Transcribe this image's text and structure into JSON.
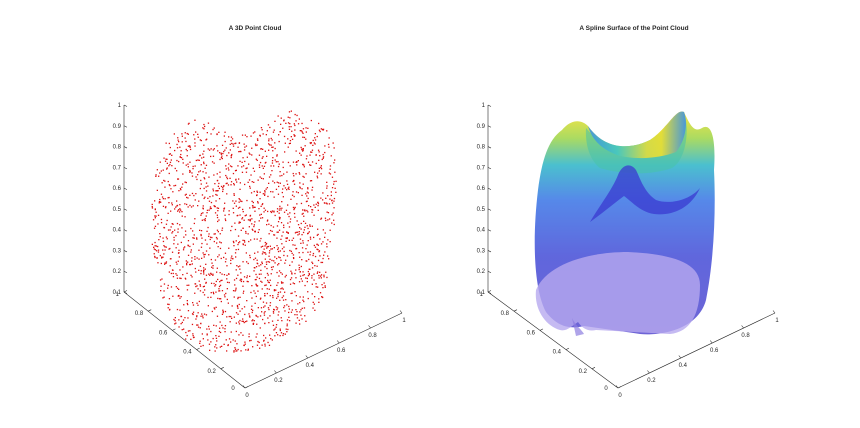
{
  "figure": {
    "background": "#ffffff"
  },
  "chart_data": [
    {
      "type": "scatter3d",
      "title": "A 3D Point Cloud",
      "marker_color": "#dd1111",
      "marker": "dot",
      "xlim": [
        0,
        1
      ],
      "ylim": [
        0,
        1
      ],
      "zlim": [
        0.1,
        1
      ],
      "x_ticks": [
        "0",
        "0.2",
        "0.4",
        "0.6",
        "0.8",
        "1"
      ],
      "y_ticks": [
        "0",
        "0.2",
        "0.4",
        "0.6",
        "0.8",
        "1"
      ],
      "z_ticks": [
        "0.1",
        "0.2",
        "0.3",
        "0.4",
        "0.5",
        "0.6",
        "0.7",
        "0.8",
        "0.9",
        "1"
      ],
      "grid": false
    },
    {
      "type": "surface",
      "title": "A Spline Surface of the Point Cloud",
      "colormap": [
        "#4430c8",
        "#3f6ae0",
        "#2fa8d8",
        "#3cc6a0",
        "#b7d644",
        "#f5e02a"
      ],
      "face_alpha": 0.55,
      "xlim": [
        0,
        1
      ],
      "ylim": [
        0,
        1
      ],
      "zlim": [
        0.1,
        1
      ],
      "x_ticks": [
        "0",
        "0.2",
        "0.4",
        "0.6",
        "0.8",
        "1"
      ],
      "y_ticks": [
        "0",
        "0.2",
        "0.4",
        "0.6",
        "0.8",
        "1"
      ],
      "z_ticks": [
        "0.1",
        "0.2",
        "0.3",
        "0.4",
        "0.5",
        "0.6",
        "0.7",
        "0.8",
        "0.9",
        "1"
      ],
      "grid": false
    }
  ]
}
